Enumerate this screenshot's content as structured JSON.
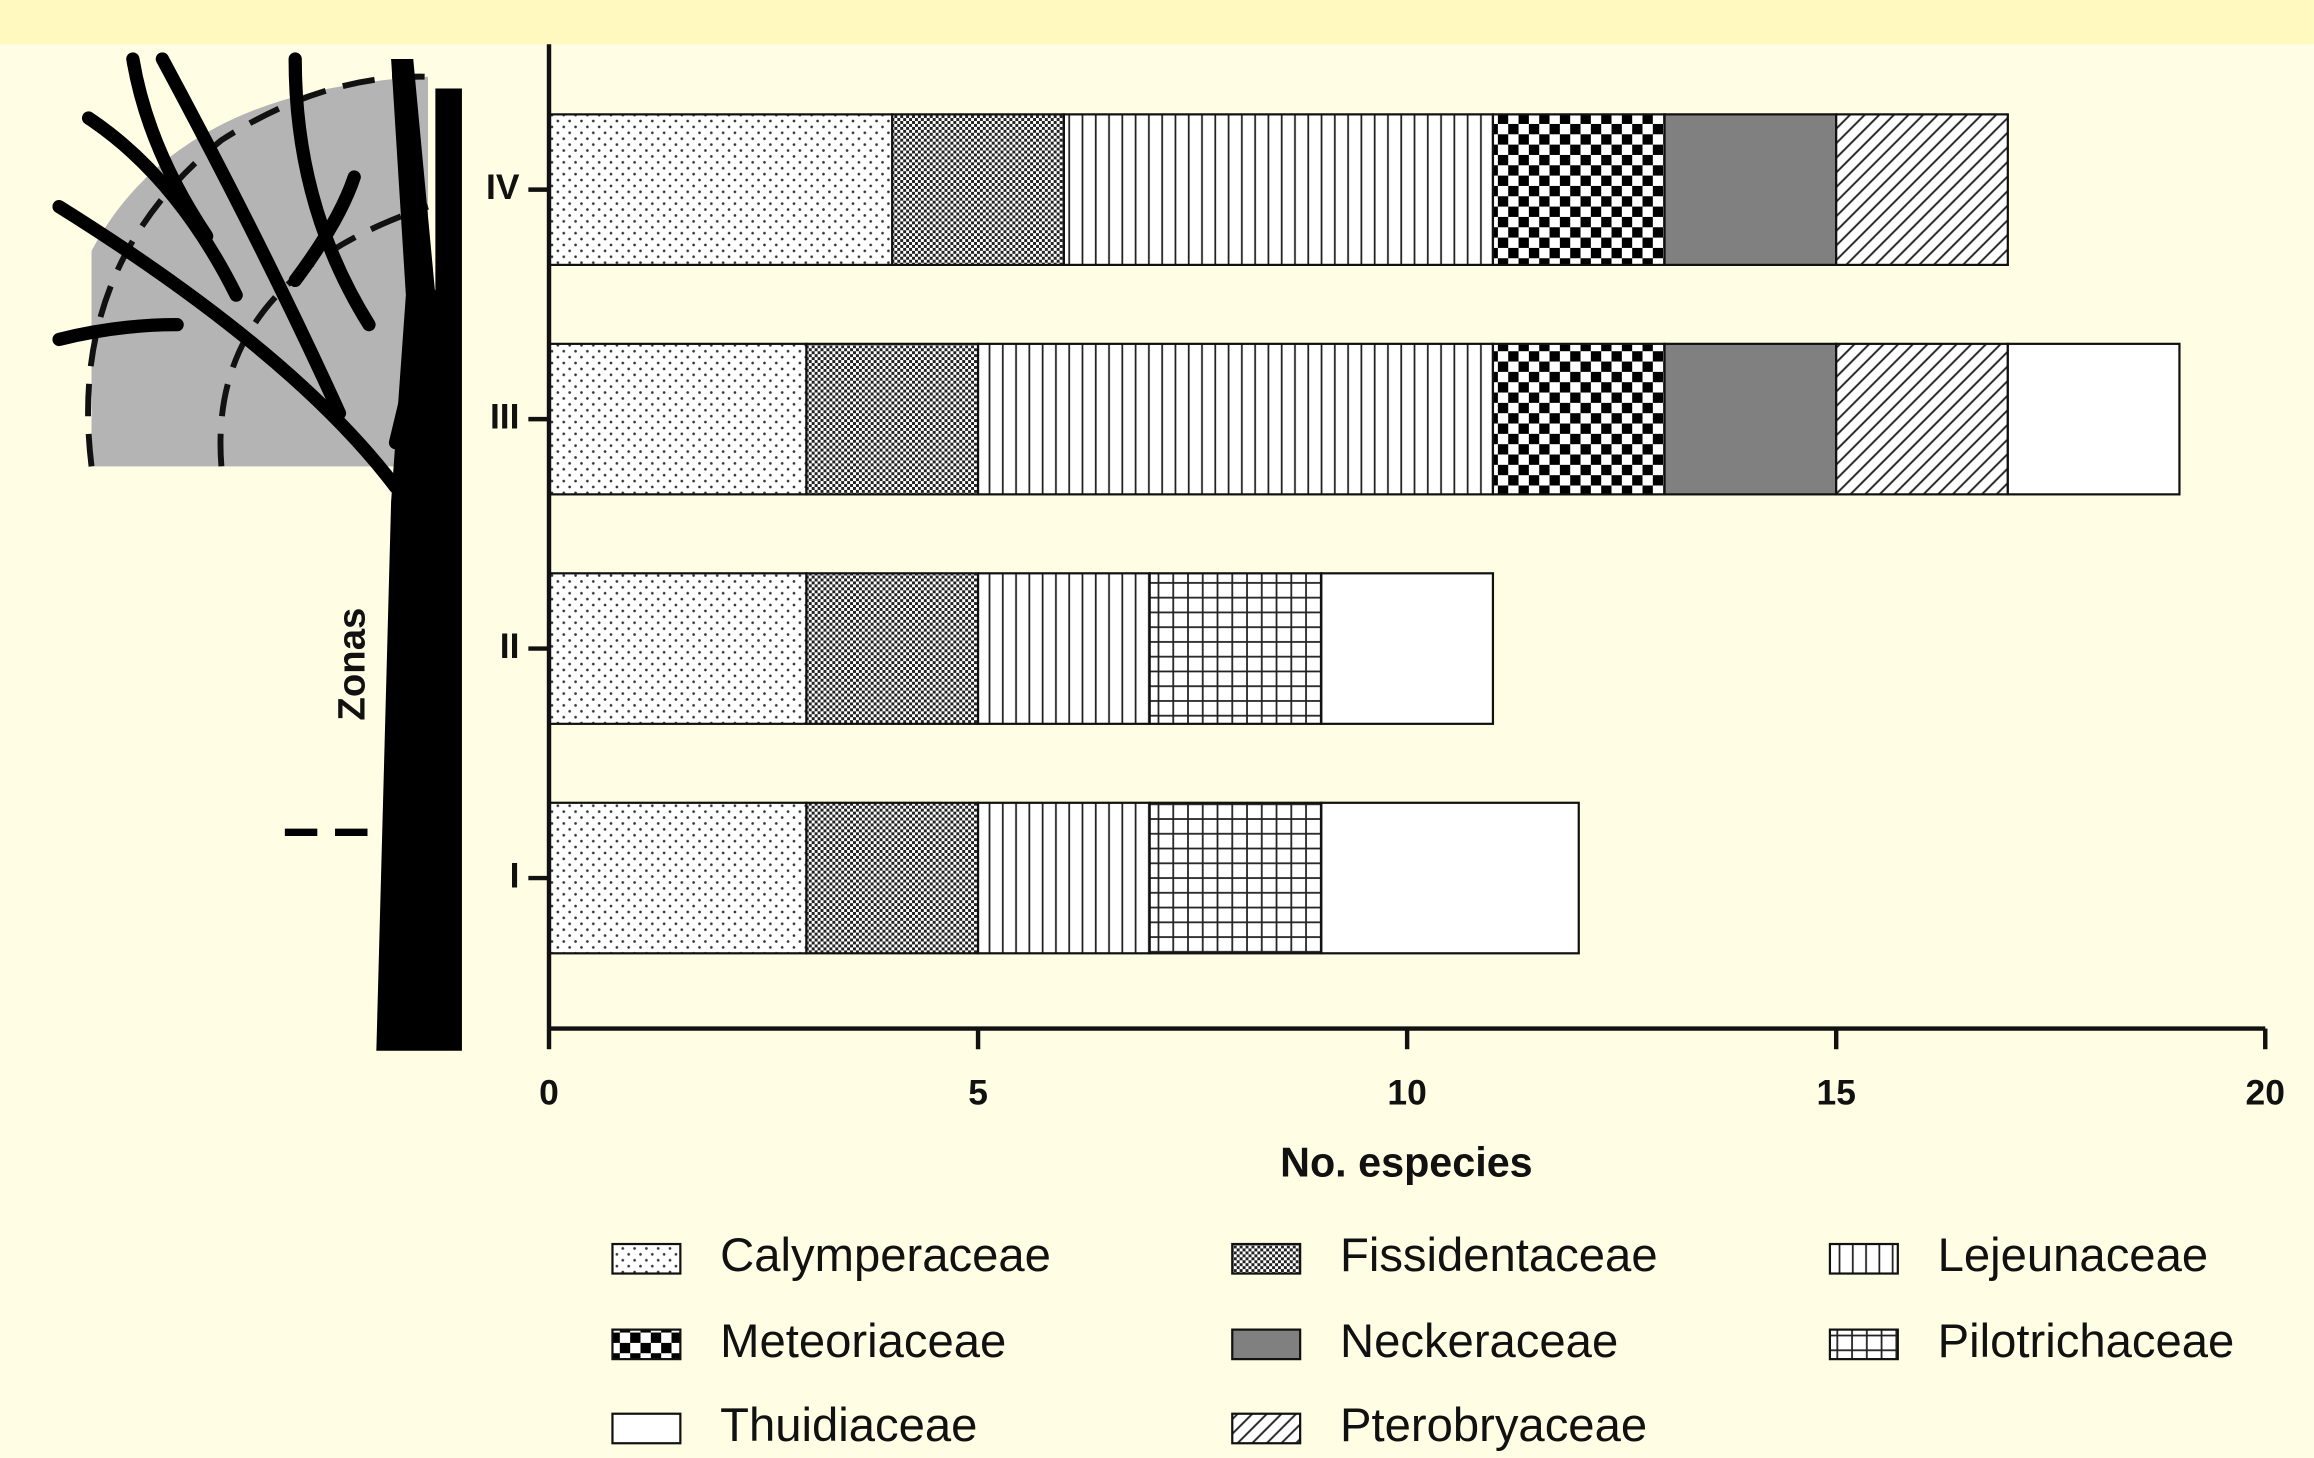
{
  "chart_data": {
    "type": "stacked_barh",
    "xlabel": "No. especies",
    "ylabel": "Zonas",
    "categories": [
      "I",
      "II",
      "III",
      "IV"
    ],
    "series": [
      {
        "name": "Calymperaceae",
        "color": "#ffffff",
        "values": [
          3,
          3,
          3,
          4
        ]
      },
      {
        "name": "Fissidentaceae",
        "color": "#555555",
        "values": [
          2,
          2,
          2,
          2
        ]
      },
      {
        "name": "Lejeunaceae",
        "color": "#ffffff",
        "values": [
          2,
          2,
          6,
          5
        ]
      },
      {
        "name": "Pilotrichaceae",
        "color": "#ffffff",
        "values": [
          2,
          2,
          0,
          0
        ]
      },
      {
        "name": "Meteoriaceae",
        "color": "#000000",
        "values": [
          0,
          0,
          2,
          2
        ]
      },
      {
        "name": "Neckeraceae",
        "color": "#808080",
        "values": [
          0,
          0,
          2,
          2
        ]
      },
      {
        "name": "Pterobryaceae",
        "color": "#ffffff",
        "values": [
          0,
          0,
          2,
          2
        ]
      },
      {
        "name": "Thuidiaceae",
        "color": "#ffffff",
        "values": [
          3,
          2,
          2,
          0
        ]
      }
    ],
    "xlim": [
      0,
      20
    ],
    "xticks": [
      0,
      5,
      10,
      15,
      20
    ]
  }
}
